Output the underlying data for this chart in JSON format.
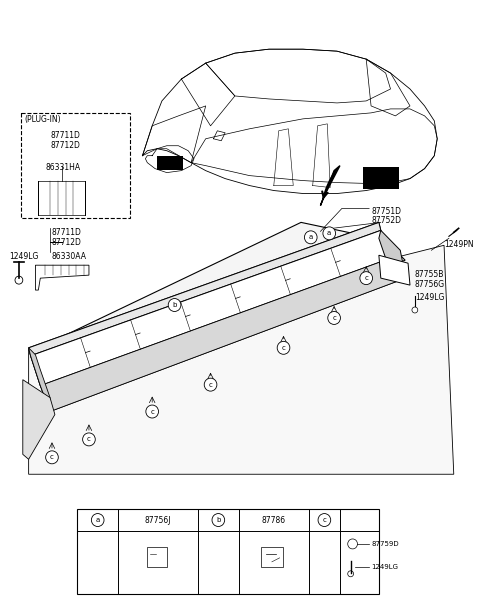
{
  "bg_color": "#ffffff",
  "fig_width": 4.8,
  "fig_height": 6.15,
  "dpi": 100,
  "plugin_box": "(PLUG-IN)",
  "labels_87711D": "87711D",
  "labels_87712D": "87712D",
  "labels_86331HA": "86331HA",
  "labels_86330AA": "86330AA",
  "labels_1249LG_L": "1249LG",
  "labels_87751D": "87751D",
  "labels_87752D": "87752D",
  "labels_1249PN": "1249PN",
  "labels_87755B": "87755B",
  "labels_87756G": "87756G",
  "labels_1249LG_R": "1249LG",
  "table_a_code": "87756J",
  "table_b_code": "87786",
  "table_c1": "87759D",
  "table_c2": "1249LG"
}
